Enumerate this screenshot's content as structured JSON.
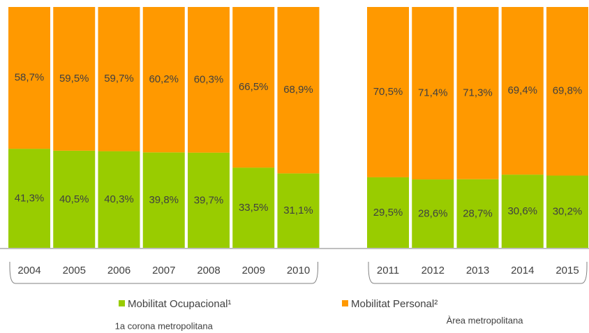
{
  "chart_data": {
    "type": "stacked_bar",
    "categories": [
      "2004",
      "2005",
      "2006",
      "2007",
      "2008",
      "2009",
      "2010",
      null,
      "2011",
      "2012",
      "2013",
      "2014",
      "2015"
    ],
    "series": [
      {
        "name": "Mobilitat Ocupacional¹",
        "color": "#99cc00",
        "values": [
          41.3,
          40.5,
          40.3,
          39.8,
          39.7,
          33.5,
          31.1,
          null,
          29.5,
          28.6,
          28.7,
          30.6,
          30.2
        ],
        "value_labels": [
          "41,3%",
          "40,5%",
          "40,3%",
          "39,8%",
          "39,7%",
          "33,5%",
          "31,1%",
          null,
          "29,5%",
          "28,6%",
          "28,7%",
          "30,6%",
          "30,2%"
        ]
      },
      {
        "name": "Mobilitat Personal²",
        "color": "#ff9900",
        "values": [
          58.7,
          59.5,
          59.7,
          60.2,
          60.3,
          66.5,
          68.9,
          null,
          70.5,
          71.4,
          71.3,
          69.4,
          69.8
        ],
        "value_labels": [
          "58,7%",
          "59,5%",
          "59,7%",
          "60,2%",
          "60,3%",
          "66,5%",
          "68,9%",
          null,
          "70,5%",
          "71,4%",
          "71,3%",
          "69,4%",
          "69,8%"
        ]
      }
    ],
    "group_labels": [
      "1a corona metropolitana",
      "Àrea metropolitana"
    ],
    "ylim": [
      0,
      100
    ]
  }
}
